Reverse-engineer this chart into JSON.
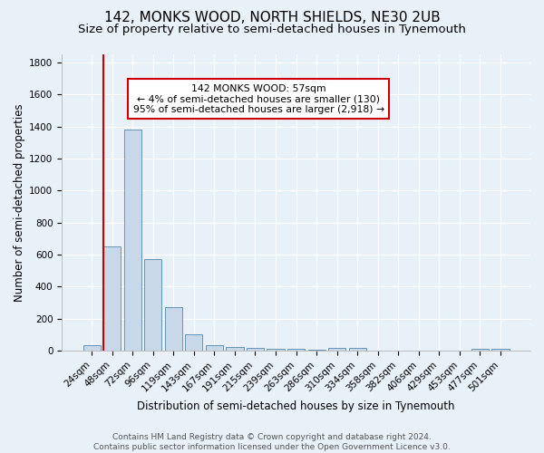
{
  "title": "142, MONKS WOOD, NORTH SHIELDS, NE30 2UB",
  "subtitle": "Size of property relative to semi-detached houses in Tynemouth",
  "xlabel": "Distribution of semi-detached houses by size in Tynemouth",
  "ylabel": "Number of semi-detached properties",
  "footer_line1": "Contains HM Land Registry data © Crown copyright and database right 2024.",
  "footer_line2": "Contains public sector information licensed under the Open Government Licence v3.0.",
  "bar_labels": [
    "24sqm",
    "48sqm",
    "72sqm",
    "96sqm",
    "119sqm",
    "143sqm",
    "167sqm",
    "191sqm",
    "215sqm",
    "239sqm",
    "263sqm",
    "286sqm",
    "310sqm",
    "334sqm",
    "358sqm",
    "382sqm",
    "406sqm",
    "429sqm",
    "453sqm",
    "477sqm",
    "501sqm"
  ],
  "bar_values": [
    35,
    650,
    1380,
    570,
    270,
    100,
    35,
    25,
    20,
    10,
    10,
    5,
    15,
    15,
    0,
    0,
    0,
    0,
    0,
    10,
    10
  ],
  "bar_color": "#c8d8e8",
  "bar_edge_color": "#5588aa",
  "red_line_x": 0.575,
  "red_line_color": "#cc0000",
  "annotation_text": "142 MONKS WOOD: 57sqm\n← 4% of semi-detached houses are smaller (130)\n95% of semi-detached houses are larger (2,918) →",
  "annotation_box_color": "#ffffff",
  "annotation_edge_color": "#cc0000",
  "ylim": [
    0,
    1850
  ],
  "yticks": [
    0,
    200,
    400,
    600,
    800,
    1000,
    1200,
    1400,
    1600,
    1800
  ],
  "background_color": "#e8f0f8",
  "plot_background": "#e8f0f8",
  "grid_color": "#ffffff",
  "title_fontsize": 11,
  "subtitle_fontsize": 9.5,
  "tick_fontsize": 7.5,
  "ylabel_fontsize": 8.5,
  "xlabel_fontsize": 8.5,
  "footer_fontsize": 6.5,
  "annotation_fontsize": 7.8
}
